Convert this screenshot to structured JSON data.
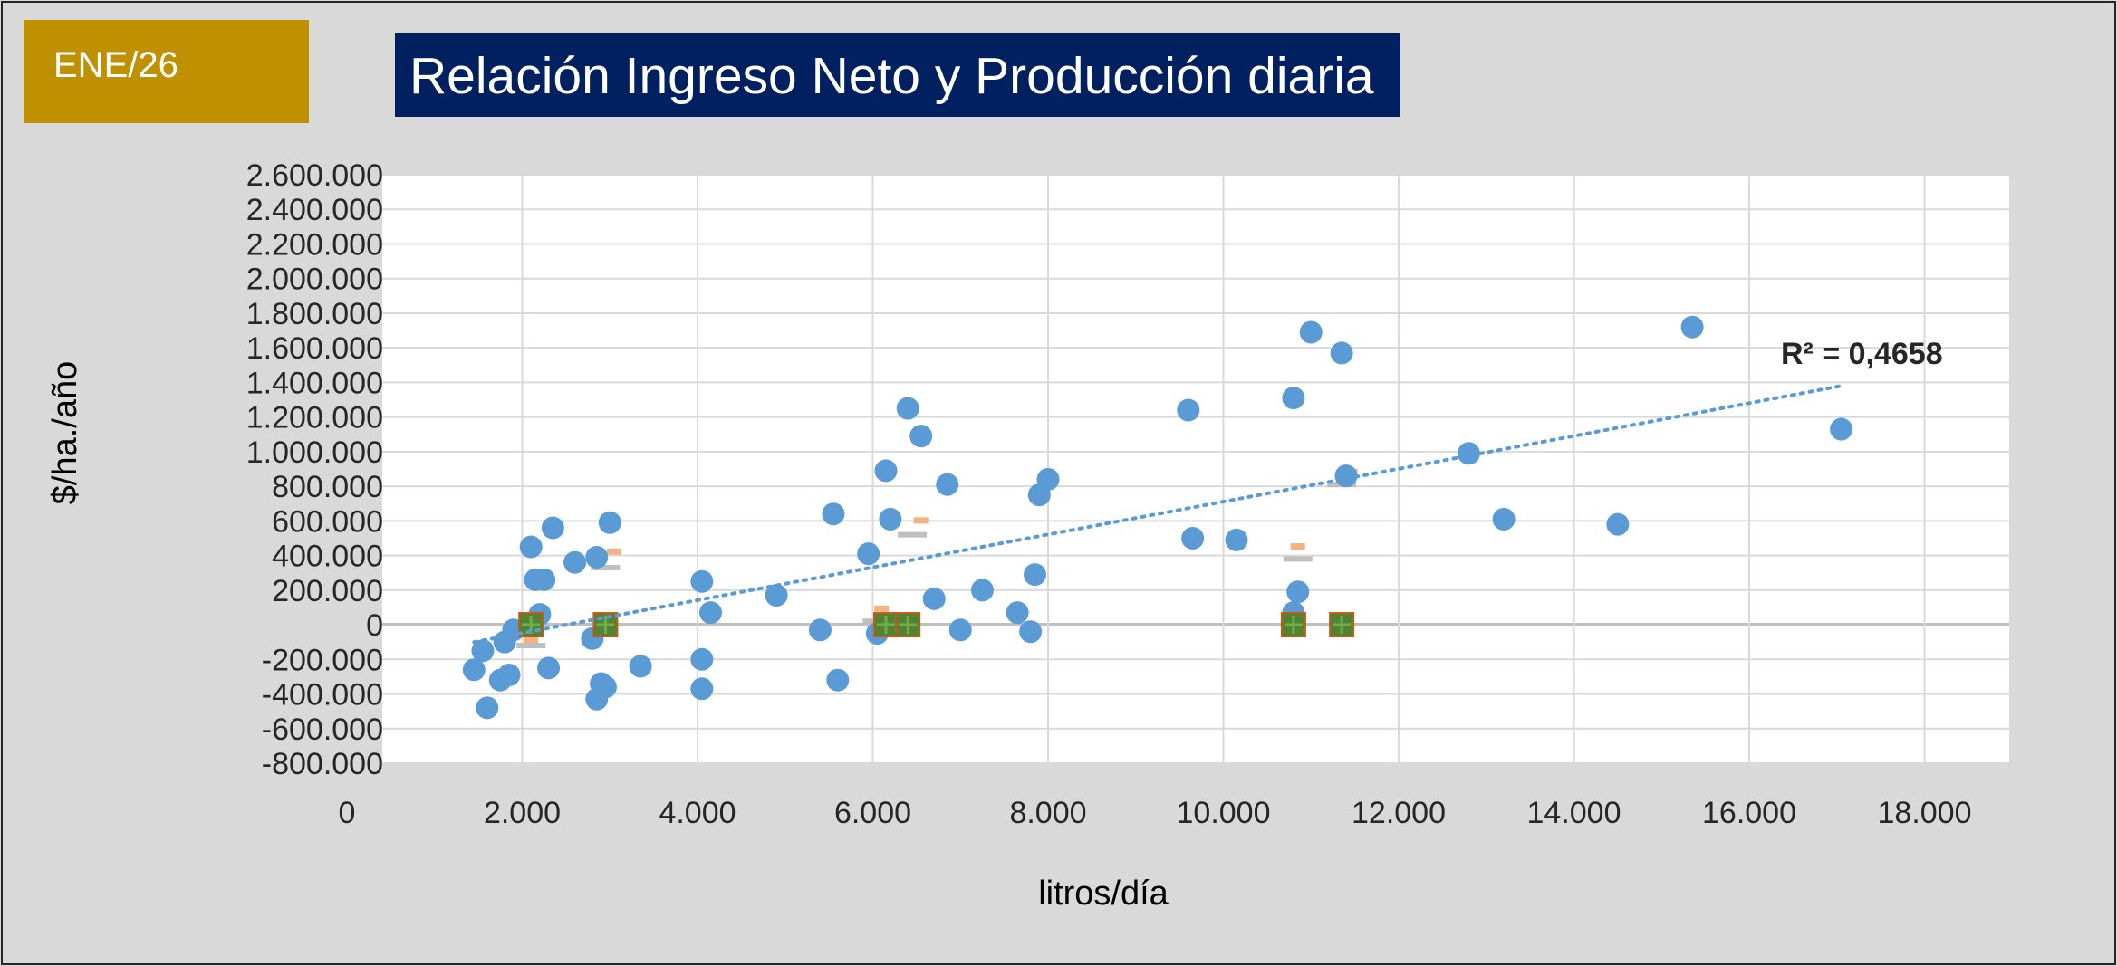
{
  "badge": {
    "label": "ENE/26"
  },
  "colors": {
    "badge_bg": "#bf9000",
    "title_bg": "#002060",
    "points": "#5b9bd5",
    "trendline": "#5b9bd5",
    "secondary_marker": "#f4b183",
    "tertiary_marker": "#bfbfbf",
    "square_marker": "#548235",
    "square_cross": "#70ad47"
  },
  "chart_data": {
    "type": "scatter",
    "title": "Relación Ingreso Neto y Producción diaria",
    "xlabel": "litros/día",
    "ylabel": "$/ha./año",
    "xlim": [
      0,
      19000
    ],
    "ylim": [
      -800000,
      2600000
    ],
    "x_ticks": [
      0,
      2000,
      4000,
      6000,
      8000,
      10000,
      12000,
      14000,
      16000,
      18000
    ],
    "x_tick_labels": [
      "0",
      "2.000",
      "4.000",
      "6.000",
      "8.000",
      "10.000",
      "12.000",
      "14.000",
      "16.000",
      "18.000"
    ],
    "y_ticks": [
      2600000,
      2400000,
      2200000,
      2000000,
      1800000,
      1600000,
      1400000,
      1200000,
      1000000,
      800000,
      600000,
      400000,
      200000,
      0,
      -200000,
      -400000,
      -600000,
      -800000
    ],
    "y_tick_labels": [
      "2.600.000",
      "2.400.000",
      "2.200.000",
      "2.000.000",
      "1.800.000",
      "1.600.000",
      "1.400.000",
      "1.200.000",
      "1.000.000",
      "800.000",
      "600.000",
      "400.000",
      "200.000",
      "0",
      "-200.000",
      "-400.000",
      "-600.000",
      "-800.000"
    ],
    "grid": true,
    "trendline": {
      "type": "linear",
      "r2_label": "R² = 0,4658",
      "x_range": [
        1450,
        17050
      ],
      "y_range": [
        -100000,
        1380000
      ]
    },
    "series": [
      {
        "values": [
          [
            1450,
            -260000
          ],
          [
            1550,
            -150000
          ],
          [
            1600,
            -480000
          ],
          [
            1750,
            -320000
          ],
          [
            1800,
            -100000
          ],
          [
            1850,
            -290000
          ],
          [
            1900,
            -30000
          ],
          [
            2100,
            450000
          ],
          [
            2150,
            260000
          ],
          [
            2200,
            60000
          ],
          [
            2250,
            260000
          ],
          [
            2300,
            -250000
          ],
          [
            2350,
            560000
          ],
          [
            2600,
            360000
          ],
          [
            2800,
            -80000
          ],
          [
            2850,
            390000
          ],
          [
            2850,
            -430000
          ],
          [
            2900,
            -340000
          ],
          [
            2950,
            -360000
          ],
          [
            3000,
            590000
          ],
          [
            3350,
            -240000
          ],
          [
            4050,
            250000
          ],
          [
            4050,
            -200000
          ],
          [
            4050,
            -370000
          ],
          [
            4150,
            70000
          ],
          [
            4900,
            170000
          ],
          [
            5400,
            -30000
          ],
          [
            5550,
            640000
          ],
          [
            5600,
            -320000
          ],
          [
            5950,
            410000
          ],
          [
            6050,
            -50000
          ],
          [
            6150,
            890000
          ],
          [
            6200,
            610000
          ],
          [
            6400,
            1250000
          ],
          [
            6550,
            1090000
          ],
          [
            6700,
            150000
          ],
          [
            6850,
            810000
          ],
          [
            7000,
            -30000
          ],
          [
            7250,
            200000
          ],
          [
            7650,
            70000
          ],
          [
            7800,
            -40000
          ],
          [
            7850,
            290000
          ],
          [
            7900,
            750000
          ],
          [
            8000,
            840000
          ],
          [
            9600,
            1240000
          ],
          [
            9650,
            500000
          ],
          [
            10150,
            490000
          ],
          [
            10800,
            1310000
          ],
          [
            10850,
            190000
          ],
          [
            10800,
            70000
          ],
          [
            11000,
            1690000
          ],
          [
            11350,
            1570000
          ],
          [
            11400,
            860000
          ],
          [
            12800,
            990000
          ],
          [
            13200,
            610000
          ],
          [
            14500,
            580000
          ],
          [
            15350,
            1720000
          ],
          [
            17050,
            1130000
          ]
        ]
      },
      {
        "values": [
          [
            2100,
            -90000
          ],
          [
            3050,
            420000
          ],
          [
            6100,
            90000
          ],
          [
            6550,
            600000
          ],
          [
            10850,
            450000
          ],
          [
            11450,
            880000
          ]
        ]
      },
      {
        "values": [
          [
            2100,
            -120000
          ],
          [
            2950,
            330000
          ],
          [
            6050,
            20000
          ],
          [
            6450,
            520000
          ],
          [
            10850,
            380000
          ],
          [
            11350,
            810000
          ]
        ]
      },
      {
        "values": [
          [
            2100,
            0
          ],
          [
            2950,
            0
          ],
          [
            6150,
            0
          ],
          [
            6400,
            0
          ],
          [
            10800,
            0
          ],
          [
            11350,
            0
          ]
        ]
      }
    ]
  }
}
